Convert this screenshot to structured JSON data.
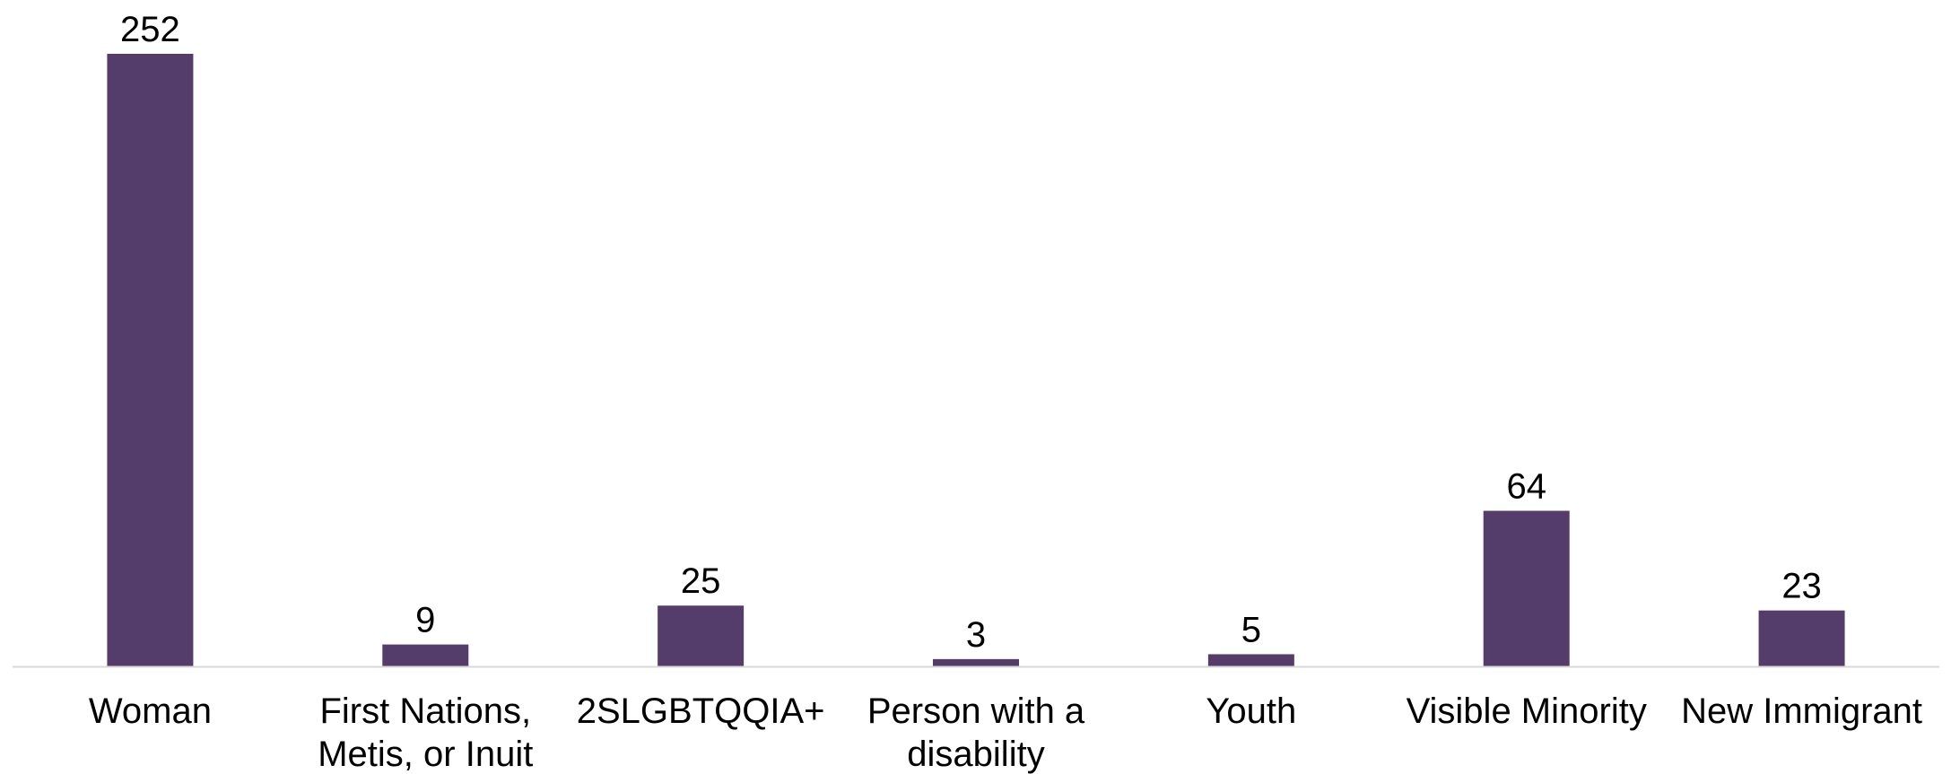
{
  "chart_data": {
    "type": "bar",
    "categories": [
      [
        "Woman"
      ],
      [
        "First Nations,",
        "Metis, or Inuit"
      ],
      [
        "2SLGBTQQIA+"
      ],
      [
        "Person with a",
        "disability"
      ],
      [
        "Youth"
      ],
      [
        "Visible Minority"
      ],
      [
        "New Immigrant"
      ]
    ],
    "values": [
      252,
      9,
      25,
      3,
      5,
      64,
      23
    ],
    "title": "",
    "xlabel": "",
    "ylabel": "",
    "ylim": [
      0,
      252
    ],
    "grid": false,
    "legend": "none",
    "data_labels": true,
    "bar_color": "#553d6b",
    "axis_color": "#d9d9d9"
  }
}
